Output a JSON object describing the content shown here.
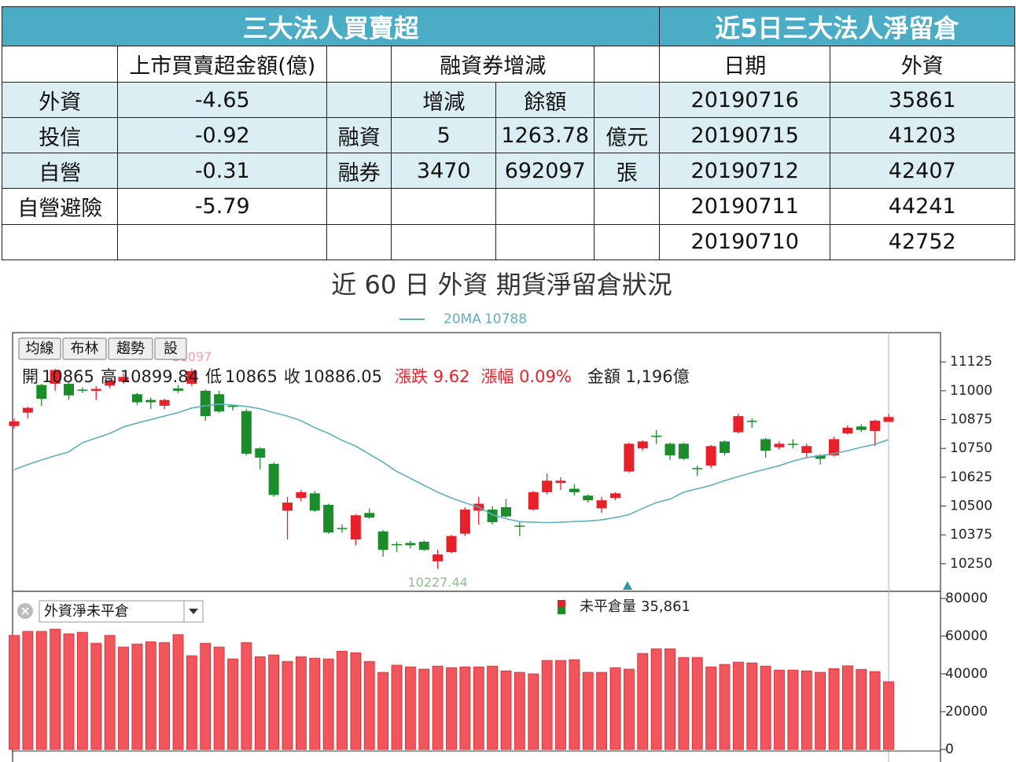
{
  "left_table": {
    "title": "三大法人買賣超",
    "header": [
      null,
      "上市買賣超金額(億)",
      null,
      "融資券增減",
      null
    ],
    "rows": [
      [
        "外資",
        "-4.65",
        null,
        "增減",
        "餘額",
        null
      ],
      [
        "投信",
        "-0.92",
        "融資",
        "5",
        "1263.78",
        "億元"
      ],
      [
        "自營",
        "-0.31",
        "融券",
        "3470",
        "692097",
        "張"
      ],
      [
        "自營避險",
        "-5.79",
        null,
        null,
        null,
        null
      ],
      [
        null,
        null,
        null,
        null,
        null,
        null
      ]
    ]
  },
  "right_table": {
    "title": "近5日三大法人淨留倉",
    "header": [
      "日期",
      "外資"
    ],
    "rows": [
      [
        "20190716",
        "35861"
      ],
      [
        "20190715",
        "41203"
      ],
      [
        "20190712",
        "42407"
      ],
      [
        "20190711",
        "44241"
      ],
      [
        "20190710",
        "42752"
      ]
    ]
  },
  "chart_title": "近 60 日 外資 期貨淨留倉狀況",
  "chart_data": [
    {
      "type": "candlestick",
      "up_color": "#e8202a",
      "down_color": "#1a8c2a",
      "buttons": [
        "均線",
        "布林",
        "趨勢",
        "設"
      ],
      "info": {
        "open_label": "開",
        "high_label": "高",
        "low_label": "低",
        "close_label": "收",
        "change": "漲跌 9.62",
        "change_pct": "漲幅 0.09%",
        "amount": "金額 1,196億"
      },
      "open": [
        10847,
        10905,
        11025,
        11030,
        11030,
        11005,
        11000,
        11022,
        11040,
        10985,
        10960,
        10935,
        11010,
        11030,
        11000,
        10985,
        10935,
        10912,
        10750,
        10683,
        10480,
        10535,
        10555,
        10505,
        10405,
        10355,
        10470,
        10390,
        10335,
        10340,
        10345,
        10260,
        10300,
        10380,
        10480,
        10485,
        10495,
        10415,
        10485,
        10560,
        10600,
        10575,
        10545,
        10490,
        10535,
        10650,
        10750,
        10805,
        10770,
        10770,
        10665,
        10675,
        10780,
        10820,
        10870,
        10790,
        10755,
        10770,
        10730,
        10720,
        10720,
        10815,
        10845,
        10825,
        10865
      ],
      "close": [
        10867,
        10926,
        10965,
        11090,
        10980,
        11000,
        11008,
        11045,
        11060,
        10950,
        10950,
        10960,
        11000,
        11085,
        10890,
        10910,
        10930,
        10727,
        10710,
        10548,
        10515,
        10560,
        10480,
        10385,
        10400,
        10460,
        10450,
        10310,
        10330,
        10330,
        10310,
        10290,
        10370,
        10485,
        10510,
        10430,
        10455,
        10410,
        10560,
        10610,
        10610,
        10560,
        10525,
        10525,
        10555,
        10770,
        10780,
        10800,
        10720,
        10705,
        10660,
        10760,
        10730,
        10890,
        10865,
        10740,
        10770,
        10765,
        10760,
        10705,
        10790,
        10840,
        10830,
        10870,
        10886.05
      ],
      "high": [
        10880,
        10930,
        11030,
        11095,
        11040,
        11015,
        11020,
        11050,
        11075,
        10990,
        10970,
        10965,
        11025,
        11097,
        11005,
        11000,
        10940,
        10920,
        10755,
        10690,
        10540,
        10570,
        10565,
        10510,
        10420,
        10465,
        10490,
        10395,
        10345,
        10350,
        10350,
        10310,
        10375,
        10495,
        10540,
        10500,
        10530,
        10430,
        10565,
        10640,
        10625,
        10595,
        10550,
        10540,
        10560,
        10775,
        10785,
        10830,
        10775,
        10775,
        10675,
        10765,
        10785,
        10900,
        10880,
        10795,
        10780,
        10790,
        10770,
        10725,
        10800,
        10850,
        10855,
        10875,
        10899.84
      ],
      "low": [
        10835,
        10880,
        10935,
        11000,
        10960,
        10990,
        10960,
        11010,
        11030,
        10940,
        10920,
        10920,
        10990,
        11020,
        10870,
        10905,
        10915,
        10720,
        10660,
        10540,
        10355,
        10520,
        10475,
        10380,
        10385,
        10330,
        10445,
        10280,
        10300,
        10315,
        10305,
        10227.44,
        10295,
        10370,
        10420,
        10420,
        10450,
        10370,
        10480,
        10550,
        10570,
        10545,
        10515,
        10470,
        10525,
        10645,
        10740,
        10770,
        10700,
        10700,
        10630,
        10665,
        10720,
        10815,
        10840,
        10710,
        10745,
        10750,
        10710,
        10680,
        10715,
        10810,
        10820,
        10760,
        10865
      ],
      "ma": {
        "name": "20MA",
        "color": "#5fb0bb",
        "values": [
          10658,
          10680,
          10700,
          10718,
          10735,
          10775,
          10795,
          10815,
          10843,
          10860,
          10875,
          10890,
          10905,
          10925,
          10935,
          10942,
          10938,
          10932,
          10922,
          10905,
          10890,
          10870,
          10840,
          10815,
          10785,
          10760,
          10725,
          10690,
          10650,
          10620,
          10590,
          10560,
          10535,
          10514,
          10495,
          10463,
          10445,
          10432,
          10430,
          10428,
          10430,
          10433,
          10435,
          10440,
          10450,
          10463,
          10490,
          10515,
          10530,
          10560,
          10575,
          10590,
          10610,
          10628,
          10645,
          10660,
          10675,
          10695,
          10710,
          10718,
          10727,
          10740,
          10755,
          10768,
          10788
        ]
      },
      "ylim": [
        10130,
        11252
      ],
      "yticks": [
        10250,
        10375,
        10500,
        10625,
        10750,
        10875,
        11000,
        11125
      ]
    },
    {
      "type": "bar",
      "selector": "外資淨未平倉",
      "latest_label": "35,861",
      "series": [
        {
          "name": "未平倉量",
          "color": "#f2555b",
          "values": [
            60400,
            62500,
            62500,
            63700,
            61200,
            62000,
            56200,
            60400,
            54200,
            55800,
            57000,
            56600,
            60800,
            49600,
            56200,
            54200,
            47900,
            56600,
            49100,
            50000,
            46600,
            49100,
            48300,
            47900,
            52000,
            51200,
            46600,
            40800,
            44600,
            43700,
            42500,
            44100,
            43300,
            43700,
            43700,
            44100,
            41600,
            40800,
            40000,
            47100,
            47100,
            47500,
            40800,
            40800,
            43300,
            42500,
            50800,
            53300,
            53300,
            48700,
            48700,
            43700,
            45000,
            46200,
            45800,
            44100,
            42000,
            42000,
            41600,
            40800,
            42752,
            44241,
            42407,
            41203,
            35861
          ]
        }
      ],
      "ylim": [
        0,
        83300
      ],
      "yticks": [
        0,
        20000,
        40000,
        60000,
        80000
      ]
    }
  ]
}
